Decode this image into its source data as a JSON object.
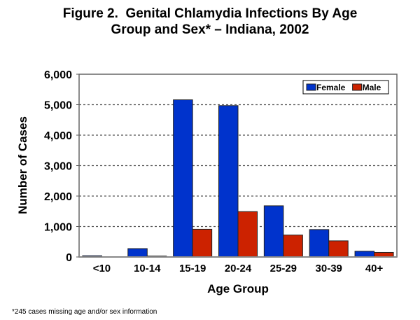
{
  "chart_data": {
    "type": "bar",
    "title_lines": [
      "Figure 2.  Genital Chlamydia Infections By Age",
      "Group and Sex* – Indiana, 2002"
    ],
    "xlabel": "Age Group",
    "ylabel": "Number of Cases",
    "categories": [
      "<10",
      "10-14",
      "15-19",
      "20-24",
      "25-29",
      "30-39",
      "40+"
    ],
    "series": [
      {
        "name": "Female",
        "color": "#0033cc",
        "values": [
          40,
          275,
          5160,
          4970,
          1680,
          900,
          190
        ]
      },
      {
        "name": "Male",
        "color": "#cc2200",
        "values": [
          3,
          30,
          910,
          1490,
          720,
          530,
          150
        ]
      }
    ],
    "ylim": [
      0,
      6000
    ],
    "yticks": [
      0,
      1000,
      2000,
      3000,
      4000,
      5000,
      6000
    ],
    "ytick_labels": [
      "0",
      "1,000",
      "2,000",
      "3,000",
      "4,000",
      "5,000",
      "6,000"
    ],
    "grid": "horizontal-dashed",
    "legend": "top-right",
    "footnote": "*245 cases missing age and/or sex information"
  }
}
